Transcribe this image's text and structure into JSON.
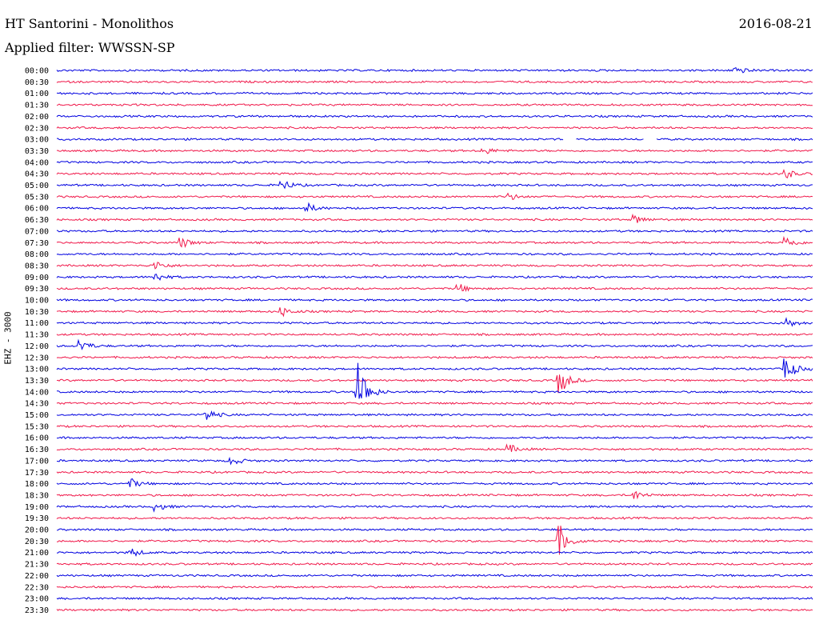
{
  "header": {
    "title": "HT Santorini - Monolithos",
    "date": "2016-08-21",
    "filter": "Applied filter: WWSSN-SP",
    "channel": "EHZ - 3000"
  },
  "colors": {
    "even_row": "#0000e0",
    "odd_row": "#f0184a"
  },
  "chart_data": {
    "type": "line",
    "title": "HT Santorini - Monolithos",
    "subtitle": "Applied filter: WWSSN-SP",
    "ylabel": "EHZ - 3000",
    "rows": [
      "00:00",
      "00:30",
      "01:00",
      "01:30",
      "02:00",
      "02:30",
      "03:00",
      "03:30",
      "04:00",
      "04:30",
      "05:00",
      "05:30",
      "06:00",
      "06:30",
      "07:00",
      "07:30",
      "08:00",
      "08:30",
      "09:00",
      "09:30",
      "10:00",
      "10:30",
      "11:00",
      "11:30",
      "12:00",
      "12:30",
      "13:00",
      "13:30",
      "14:00",
      "14:30",
      "15:00",
      "15:30",
      "16:00",
      "16:30",
      "17:00",
      "17:30",
      "18:00",
      "18:30",
      "19:00",
      "19:30",
      "20:00",
      "20:30",
      "21:00",
      "21:30",
      "22:00",
      "22:30",
      "23:00",
      "23:30"
    ],
    "row_minutes": 30,
    "events": [
      {
        "row": "00:00",
        "minute": 27,
        "amp": 5
      },
      {
        "row": "03:30",
        "minute": 17,
        "amp": 4
      },
      {
        "row": "04:30",
        "minute": 29,
        "amp": 5
      },
      {
        "row": "05:00",
        "minute": 9,
        "amp": 6
      },
      {
        "row": "05:30",
        "minute": 18,
        "amp": 4
      },
      {
        "row": "06:00",
        "minute": 10,
        "amp": 5
      },
      {
        "row": "06:30",
        "minute": 23,
        "amp": 5
      },
      {
        "row": "07:30",
        "minute": 5,
        "amp": 6
      },
      {
        "row": "07:30",
        "minute": 29,
        "amp": 7
      },
      {
        "row": "08:30",
        "minute": 4,
        "amp": 5
      },
      {
        "row": "09:00",
        "minute": 4,
        "amp": 5
      },
      {
        "row": "09:30",
        "minute": 16,
        "amp": 5
      },
      {
        "row": "10:30",
        "minute": 9,
        "amp": 5
      },
      {
        "row": "11:00",
        "minute": 29,
        "amp": 6
      },
      {
        "row": "12:00",
        "minute": 1,
        "amp": 7
      },
      {
        "row": "13:00",
        "minute": 29,
        "amp": 14
      },
      {
        "row": "13:30",
        "minute": 20,
        "amp": 16
      },
      {
        "row": "14:00",
        "minute": 12,
        "amp": 38
      },
      {
        "row": "15:00",
        "minute": 6,
        "amp": 7
      },
      {
        "row": "16:30",
        "minute": 18,
        "amp": 5
      },
      {
        "row": "17:00",
        "minute": 7,
        "amp": 5
      },
      {
        "row": "18:00",
        "minute": 3,
        "amp": 5
      },
      {
        "row": "18:30",
        "minute": 23,
        "amp": 5
      },
      {
        "row": "19:00",
        "minute": 4,
        "amp": 5
      },
      {
        "row": "20:30",
        "minute": 20,
        "amp": 18
      },
      {
        "row": "21:00",
        "minute": 3,
        "amp": 5
      }
    ],
    "gaps": [
      {
        "row": "03:00",
        "from_minute": 20.1,
        "to_minute": 20.6
      },
      {
        "row": "03:00",
        "from_minute": 23.3,
        "to_minute": 23.8
      }
    ],
    "xlim_minutes": [
      0,
      30
    ],
    "grid": false,
    "legend": "none"
  }
}
